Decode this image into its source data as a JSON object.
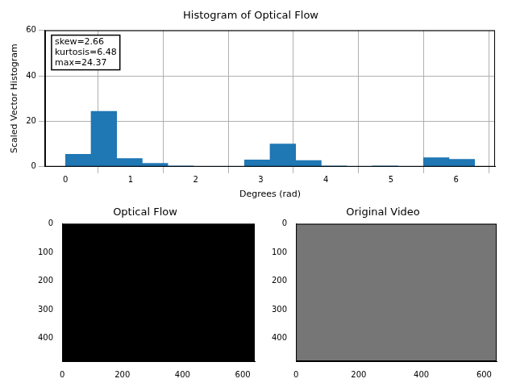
{
  "chart_data": [
    {
      "type": "histogram",
      "title": "Histogram of Optical Flow",
      "x_label": "Degrees (rad)",
      "y_label": "Scaled Vector Histogram",
      "bins": [
        0,
        0.3927,
        0.7854,
        1.1781,
        1.5708,
        1.9635,
        2.3562,
        2.7489,
        3.1416,
        3.5343,
        3.927,
        4.3197,
        4.7124,
        5.1051,
        5.4978,
        5.8905,
        6.2832
      ],
      "values": [
        5.5,
        24.37,
        3.6,
        1.5,
        0.3,
        0.2,
        0.2,
        3.0,
        10.0,
        2.7,
        0.3,
        0.2,
        0.3,
        0.1,
        4.0,
        3.3
      ],
      "color": "#1f77b4",
      "xlim": [
        -0.314,
        6.597
      ],
      "xticks": [
        0,
        1,
        2,
        3,
        4,
        5,
        6
      ],
      "ylim": [
        0,
        60
      ],
      "yticks": [
        0,
        20,
        40,
        60
      ],
      "grid": true,
      "annotation": [
        "skew=2.66",
        "kurtosis=6.48",
        "max=24.37"
      ]
    },
    {
      "type": "image",
      "title": "Optical Flow",
      "xlim": [
        0,
        640
      ],
      "xticks": [
        0,
        200,
        400,
        600
      ],
      "ylim": [
        480,
        0
      ],
      "yticks": [
        0,
        100,
        200,
        300,
        400
      ],
      "color": "#000000"
    },
    {
      "type": "image",
      "title": "Original Video",
      "xlim": [
        0,
        640
      ],
      "xticks": [
        0,
        200,
        400,
        600
      ],
      "ylim": [
        480,
        0
      ],
      "yticks": [
        0,
        100,
        200,
        300,
        400
      ],
      "color": "#767676"
    }
  ]
}
